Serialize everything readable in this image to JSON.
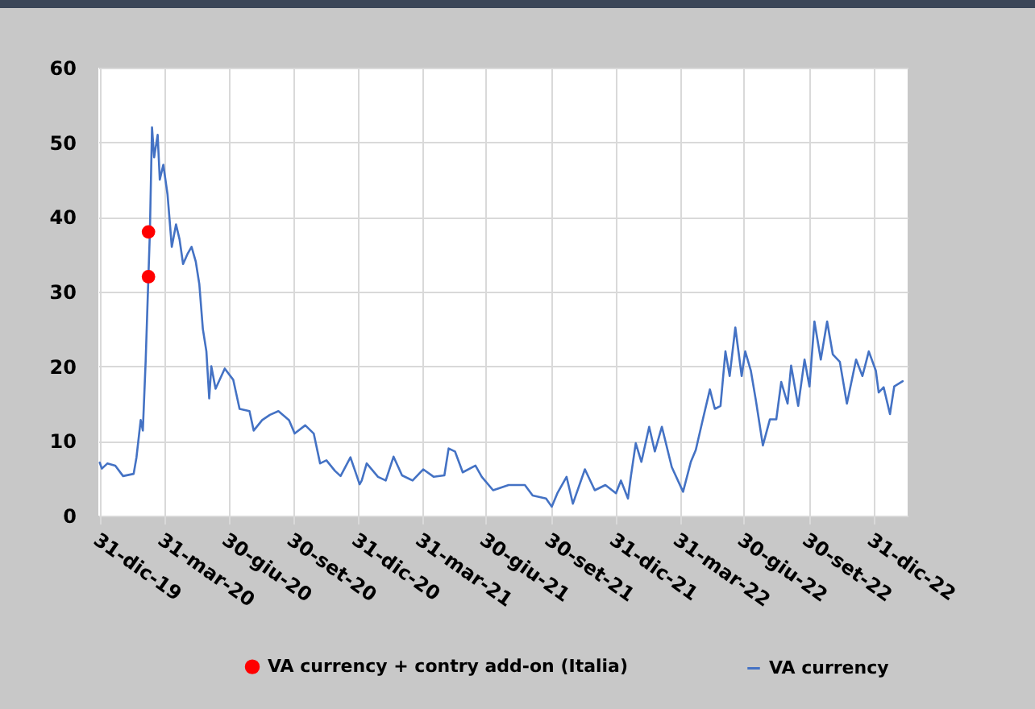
{
  "chart_data": {
    "type": "line",
    "xlim": [
      "2019-12-29",
      "2023-02-17"
    ],
    "xticks": [
      {
        "value": "2019-12-31",
        "label": "31-dic-19"
      },
      {
        "value": "2020-03-31",
        "label": "31-mar-20"
      },
      {
        "value": "2020-06-30",
        "label": "30-giu-20"
      },
      {
        "value": "2020-09-30",
        "label": "30-set-20"
      },
      {
        "value": "2020-12-31",
        "label": "31-dic-20"
      },
      {
        "value": "2021-03-31",
        "label": "31-mar-21"
      },
      {
        "value": "2021-06-30",
        "label": "30-giu-21"
      },
      {
        "value": "2021-09-30",
        "label": "30-set-21"
      },
      {
        "value": "2021-12-31",
        "label": "31-dic-21"
      },
      {
        "value": "2022-03-31",
        "label": "31-mar-22"
      },
      {
        "value": "2022-06-30",
        "label": "30-giu-22"
      },
      {
        "value": "2022-09-30",
        "label": "30-set-22"
      },
      {
        "value": "2022-12-31",
        "label": "31-dic-22"
      }
    ],
    "ylim": [
      0,
      60
    ],
    "yticks": [
      0,
      10,
      20,
      30,
      40,
      50,
      60
    ],
    "grid": true,
    "legend": "bottom",
    "series": [
      {
        "name": "VA currency + contry add-on (Italia)",
        "type": "scatter",
        "color": "#ff0000",
        "x": [
          "2020-03-09",
          "2020-03-09"
        ],
        "values": [
          38,
          32
        ]
      },
      {
        "name": "VA currency",
        "type": "line",
        "color": "#4472c4",
        "x": [
          "2019-12-31",
          "2020-01-03",
          "2020-01-11",
          "2020-01-22",
          "2020-02-02",
          "2020-02-17",
          "2020-02-21",
          "2020-02-27",
          "2020-03-01",
          "2020-03-05",
          "2020-03-08",
          "2020-03-11",
          "2020-03-14",
          "2020-03-17",
          "2020-03-22",
          "2020-03-25",
          "2020-03-30",
          "2020-04-05",
          "2020-04-11",
          "2020-04-17",
          "2020-04-22",
          "2020-04-27",
          "2020-05-03",
          "2020-05-09",
          "2020-05-15",
          "2020-05-20",
          "2020-05-25",
          "2020-05-30",
          "2020-06-03",
          "2020-06-06",
          "2020-06-12",
          "2020-06-25",
          "2020-07-07",
          "2020-07-16",
          "2020-07-30",
          "2020-08-05",
          "2020-08-17",
          "2020-08-28",
          "2020-09-09",
          "2020-09-24",
          "2020-10-02",
          "2020-10-17",
          "2020-10-29",
          "2020-11-07",
          "2020-11-16",
          "2020-11-28",
          "2020-12-06",
          "2020-12-20",
          "2020-12-28",
          "2021-01-02",
          "2021-01-05",
          "2021-01-12",
          "2021-01-28",
          "2021-02-08",
          "2021-02-19",
          "2021-03-03",
          "2021-03-18",
          "2021-04-02",
          "2021-04-17",
          "2021-05-02",
          "2021-05-08",
          "2021-05-17",
          "2021-05-28",
          "2021-06-15",
          "2021-06-24",
          "2021-07-10",
          "2021-08-01",
          "2021-08-24",
          "2021-09-04",
          "2021-09-23",
          "2021-10-01",
          "2021-10-09",
          "2021-10-22",
          "2021-10-31",
          "2021-11-17",
          "2021-12-01",
          "2021-12-16",
          "2021-12-31",
          "2022-01-07",
          "2022-01-17",
          "2022-01-21",
          "2022-01-28",
          "2022-02-05",
          "2022-02-16",
          "2022-02-24",
          "2022-03-06",
          "2022-03-20",
          "2022-04-05",
          "2022-04-16",
          "2022-04-23",
          "2022-05-03",
          "2022-05-13",
          "2022-05-20",
          "2022-05-28",
          "2022-06-04",
          "2022-06-10",
          "2022-06-18",
          "2022-06-27",
          "2022-07-02",
          "2022-07-10",
          "2022-07-17",
          "2022-07-27",
          "2022-08-06",
          "2022-08-15",
          "2022-08-22",
          "2022-08-31",
          "2022-09-05",
          "2022-09-15",
          "2022-09-24",
          "2022-10-01",
          "2022-10-08",
          "2022-10-17",
          "2022-10-26",
          "2022-11-03",
          "2022-11-13",
          "2022-11-23",
          "2022-12-06",
          "2022-12-15",
          "2022-12-24",
          "2023-01-03",
          "2023-01-07",
          "2023-01-14",
          "2023-01-23",
          "2023-01-29",
          "2023-02-10"
        ],
        "values": [
          7.1,
          6.3,
          7,
          6.7,
          5.3,
          5.6,
          7.8,
          12.8,
          11.4,
          20.7,
          29.4,
          38,
          52,
          48,
          51,
          45,
          47,
          43,
          36,
          39,
          37,
          33.7,
          35,
          36,
          34,
          31,
          25,
          22,
          15.7,
          20,
          17,
          19.7,
          18.2,
          14.3,
          14,
          11.4,
          12.8,
          13.5,
          14,
          12.8,
          11,
          12.1,
          11,
          7,
          7.4,
          6,
          5.3,
          7.8,
          5.6,
          4.2,
          4.7,
          7,
          5.2,
          4.7,
          7.9,
          5.4,
          4.7,
          6.2,
          5.2,
          5.4,
          9,
          8.6,
          5.8,
          6.7,
          5.2,
          3.4,
          4.1,
          4.1,
          2.7,
          2.3,
          1.2,
          3,
          5.2,
          1.6,
          6.2,
          3.4,
          4.1,
          3,
          4.7,
          2.3,
          5.2,
          9.7,
          7.2,
          11.9,
          8.6,
          11.9,
          6.5,
          3.2,
          7.2,
          8.8,
          12.9,
          16.9,
          14.3,
          14.7,
          22,
          18.7,
          25.2,
          18.7,
          22,
          19.4,
          15.5,
          9.4,
          12.9,
          12.9,
          17.9,
          15,
          20.1,
          14.7,
          20.9,
          17.3,
          26,
          20.9,
          26,
          21.6,
          20.6,
          15,
          20.9,
          18.7,
          22,
          19.4,
          16.5,
          17.2,
          13.6,
          17.3,
          18
        ]
      }
    ]
  }
}
